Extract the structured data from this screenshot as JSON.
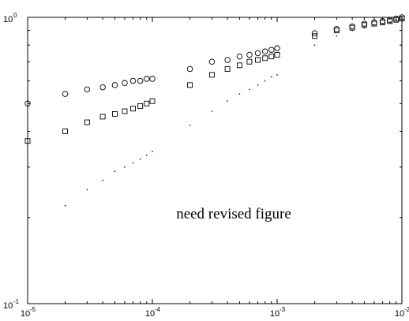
{
  "chart_data": {
    "type": "scatter",
    "x_scale": "log",
    "y_scale": "log",
    "xlim": [
      1e-05,
      0.01
    ],
    "ylim": [
      0.1,
      1
    ],
    "grid": false,
    "x_ticks": [
      {
        "base": "10",
        "exp": "-5",
        "value": 1e-05
      },
      {
        "base": "10",
        "exp": "-4",
        "value": 0.0001
      },
      {
        "base": "10",
        "exp": "-3",
        "value": 0.001
      },
      {
        "base": "10",
        "exp": "-2",
        "value": 0.01
      }
    ],
    "y_ticks": [
      {
        "base": "10",
        "exp": "-1",
        "value": 0.1
      },
      {
        "base": "10",
        "exp": "0",
        "value": 1
      }
    ],
    "annotation": "need revised figure",
    "series": [
      {
        "marker": "circle",
        "points": [
          [
            1e-05,
            0.5
          ],
          [
            2e-05,
            0.54
          ],
          [
            3e-05,
            0.56
          ],
          [
            4e-05,
            0.57
          ],
          [
            5e-05,
            0.58
          ],
          [
            6e-05,
            0.59
          ],
          [
            7e-05,
            0.6
          ],
          [
            8e-05,
            0.6
          ],
          [
            9e-05,
            0.61
          ],
          [
            0.0001,
            0.61
          ],
          [
            0.0002,
            0.66
          ],
          [
            0.0003,
            0.7
          ],
          [
            0.0004,
            0.71
          ],
          [
            0.0005,
            0.73
          ],
          [
            0.0006,
            0.74
          ],
          [
            0.0007,
            0.75
          ],
          [
            0.0008,
            0.76
          ],
          [
            0.0009,
            0.77
          ],
          [
            0.001,
            0.78
          ],
          [
            0.002,
            0.88
          ],
          [
            0.003,
            0.91
          ],
          [
            0.004,
            0.93
          ],
          [
            0.005,
            0.95
          ],
          [
            0.006,
            0.96
          ],
          [
            0.007,
            0.97
          ],
          [
            0.008,
            0.98
          ],
          [
            0.009,
            0.99
          ],
          [
            0.01,
            1.0
          ]
        ]
      },
      {
        "marker": "square",
        "points": [
          [
            1e-05,
            0.37
          ],
          [
            2e-05,
            0.4
          ],
          [
            3e-05,
            0.43
          ],
          [
            4e-05,
            0.45
          ],
          [
            5e-05,
            0.46
          ],
          [
            6e-05,
            0.47
          ],
          [
            7e-05,
            0.48
          ],
          [
            8e-05,
            0.49
          ],
          [
            9e-05,
            0.5
          ],
          [
            0.0001,
            0.51
          ],
          [
            0.0002,
            0.58
          ],
          [
            0.0003,
            0.63
          ],
          [
            0.0004,
            0.66
          ],
          [
            0.0005,
            0.68
          ],
          [
            0.0006,
            0.7
          ],
          [
            0.0007,
            0.71
          ],
          [
            0.0008,
            0.72
          ],
          [
            0.0009,
            0.73
          ],
          [
            0.001,
            0.74
          ],
          [
            0.002,
            0.86
          ],
          [
            0.003,
            0.9
          ],
          [
            0.004,
            0.92
          ],
          [
            0.005,
            0.94
          ],
          [
            0.006,
            0.95
          ],
          [
            0.007,
            0.96
          ],
          [
            0.008,
            0.97
          ],
          [
            0.009,
            0.98
          ],
          [
            0.01,
            0.99
          ]
        ]
      },
      {
        "marker": "dot",
        "points": [
          [
            2e-05,
            0.22
          ],
          [
            3e-05,
            0.25
          ],
          [
            4e-05,
            0.27
          ],
          [
            5e-05,
            0.29
          ],
          [
            6e-05,
            0.3
          ],
          [
            7e-05,
            0.31
          ],
          [
            8e-05,
            0.32
          ],
          [
            9e-05,
            0.33
          ],
          [
            0.0001,
            0.34
          ],
          [
            0.0002,
            0.42
          ],
          [
            0.0003,
            0.47
          ],
          [
            0.0004,
            0.51
          ],
          [
            0.0005,
            0.54
          ],
          [
            0.0006,
            0.56
          ],
          [
            0.0007,
            0.58
          ],
          [
            0.0008,
            0.6
          ],
          [
            0.0009,
            0.62
          ],
          [
            0.001,
            0.63
          ],
          [
            0.002,
            0.8
          ],
          [
            0.003,
            0.86
          ],
          [
            0.004,
            0.9
          ],
          [
            0.005,
            0.92
          ],
          [
            0.006,
            0.94
          ],
          [
            0.007,
            0.95
          ],
          [
            0.008,
            0.96
          ],
          [
            0.009,
            0.98
          ],
          [
            0.01,
            0.99
          ]
        ]
      }
    ]
  }
}
